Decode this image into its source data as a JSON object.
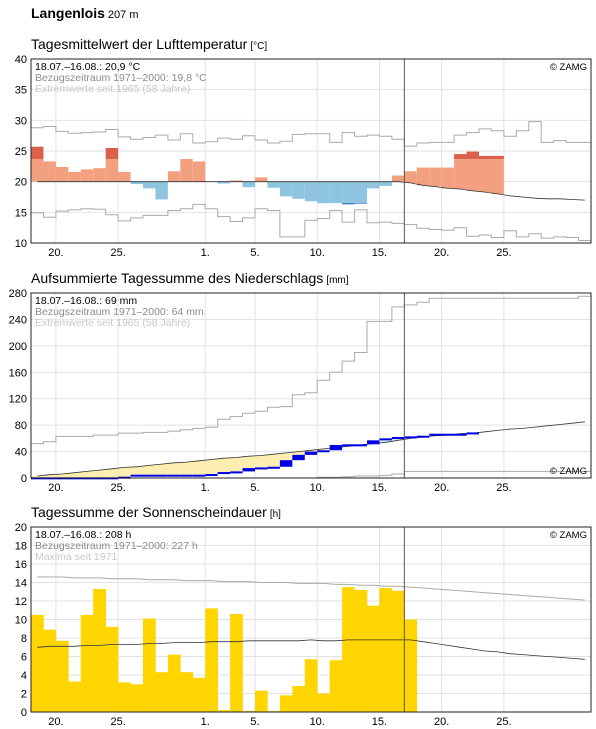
{
  "station": {
    "name": "Langenlois",
    "elevation": "207 m"
  },
  "copyright": "© ZAMG",
  "x_ticks": [
    {
      "day": 2,
      "label": "20."
    },
    {
      "day": 7,
      "label": "25."
    },
    {
      "day": 14,
      "label": "1."
    },
    {
      "day": 18,
      "label": "5."
    },
    {
      "day": 23,
      "label": "10."
    },
    {
      "day": 28,
      "label": "15."
    },
    {
      "day": 33,
      "label": "20."
    },
    {
      "day": 38,
      "label": "25."
    }
  ],
  "chart_data": [
    {
      "id": "temperature",
      "type": "bar",
      "title": "Tagesmittelwert der Lufttemperatur",
      "unit": "[°C]",
      "info": [
        "18.07.–16.08.: 20,9 °C",
        "Bezugszeitraum 1971–2000: 19,8 °C",
        "Extremwerte seit 1965 (58 Jahre)"
      ],
      "colors": {
        "warm_strong": "#d9604a",
        "warm": "#f2a080",
        "cool_strong": "#2a73b8",
        "cool": "#8ec4e0",
        "reference": "#333333",
        "extremes": "#aaaaaa"
      },
      "ylim": [
        10,
        40
      ],
      "y_ticks": [
        10,
        15,
        20,
        25,
        30,
        35,
        40
      ],
      "xlim": [
        0,
        45
      ],
      "current_day_marker": 30,
      "daily_values": [
        25.7,
        23.3,
        22.4,
        21.6,
        22.0,
        22.2,
        25.5,
        21.6,
        19.6,
        18.9,
        17.1,
        21.7,
        23.7,
        23.3,
        20.0,
        19.7,
        20.2,
        19.1,
        20.7,
        19.0,
        17.6,
        17.2,
        16.8,
        16.5,
        16.5,
        16.3,
        16.4,
        18.9,
        19.3,
        21.0,
        21.7,
        22.3,
        22.3,
        22.3,
        24.5,
        24.9,
        24.2,
        24.2
      ],
      "reference": [
        20.0,
        20.0,
        20.0,
        20.0,
        20.0,
        20.0,
        20.0,
        20.0,
        20.0,
        20.0,
        20.0,
        20.0,
        20.0,
        20.0,
        20.0,
        20.0,
        20.0,
        20.0,
        20.0,
        20.0,
        20.0,
        20.0,
        20.0,
        20.0,
        20.0,
        20.0,
        20.0,
        20.0,
        20.0,
        20.0,
        19.8,
        19.4,
        19.2,
        18.9,
        18.8,
        18.5,
        18.3,
        18.0,
        17.7,
        17.5,
        17.3,
        17.2,
        17.2,
        17.1,
        17.0
      ],
      "extreme_max": [
        28.8,
        29.0,
        28.2,
        27.9,
        28.0,
        28.1,
        28.5,
        27.3,
        26.9,
        27.2,
        27.6,
        26.8,
        27.8,
        26.3,
        26.5,
        27.1,
        26.9,
        27.5,
        26.8,
        26.3,
        26.6,
        27.7,
        27.8,
        27.8,
        26.4,
        28.0,
        27.4,
        27.6,
        27.4,
        26.9,
        25.8,
        26.3,
        26.4,
        26.4,
        27.6,
        28.0,
        28.6,
        28.3,
        27.4,
        28.3,
        29.8,
        26.4,
        26.7,
        26.4,
        26.4
      ],
      "extreme_min": [
        14.9,
        14.2,
        15.2,
        15.4,
        15.6,
        15.5,
        14.6,
        13.6,
        14.1,
        14.5,
        14.5,
        15.3,
        15.6,
        16.3,
        15.6,
        14.3,
        13.5,
        14.1,
        15.6,
        15.3,
        11.0,
        11.0,
        13.7,
        14.0,
        15.3,
        13.4,
        15.4,
        13.3,
        13.4,
        13.2,
        13.0,
        12.4,
        12.2,
        12.1,
        12.5,
        11.1,
        11.3,
        10.9,
        12.0,
        11.0,
        11.5,
        10.8,
        11.0,
        10.9,
        10.4
      ]
    },
    {
      "id": "precipitation",
      "type": "line",
      "title": "Aufsummierte Tagessumme des Niederschlags",
      "unit": "[mm]",
      "info": [
        "18.07.–16.08.: 69 mm",
        "Bezugszeitraum 1971–2000: 64 mm",
        "Extremwerte seit 1965 (58 Jahre)"
      ],
      "colors": {
        "observed": "#0000e6",
        "surplus_fill": "#d8ecec",
        "deficit_fill": "#fbeeb0",
        "reference": "#333333",
        "extremes": "#aaaaaa"
      },
      "ylim": [
        0,
        280
      ],
      "y_ticks": [
        0,
        40,
        80,
        120,
        160,
        200,
        240,
        280
      ],
      "xlim": [
        0,
        45
      ],
      "current_day_marker": 30,
      "cumulative_observed": [
        1,
        1,
        1,
        1,
        1,
        1,
        1,
        2,
        5,
        5,
        5,
        5,
        5,
        5,
        6,
        9,
        10,
        15,
        16,
        17,
        27,
        35,
        40,
        42,
        50,
        51,
        51,
        57,
        60,
        62,
        63,
        64,
        67,
        67,
        67,
        69
      ],
      "cumulative_reference": [
        3,
        5,
        6,
        8,
        10,
        12,
        14,
        16,
        17,
        19,
        21,
        23,
        24,
        26,
        28,
        30,
        31,
        33,
        34,
        36,
        38,
        40,
        42,
        44,
        46,
        48,
        50,
        52,
        54,
        57,
        60,
        62,
        64,
        65,
        67,
        68,
        70,
        72,
        74,
        75,
        77,
        79,
        81,
        83,
        85
      ],
      "extreme_max": [
        52,
        55,
        63,
        63,
        63,
        65,
        65,
        68,
        68,
        69,
        69,
        71,
        73,
        75,
        77,
        89,
        93,
        98,
        101,
        107,
        108,
        126,
        129,
        148,
        160,
        177,
        190,
        237,
        237,
        259,
        262,
        266,
        272,
        272,
        272,
        272,
        272,
        272,
        272,
        272,
        272,
        272,
        272,
        272,
        275
      ],
      "extreme_min": [
        0,
        0,
        0,
        0,
        0,
        0,
        0,
        0,
        0,
        0,
        0,
        0,
        0,
        0,
        0,
        0,
        0,
        0,
        0,
        0,
        0,
        0,
        0,
        1,
        1,
        2,
        3,
        3,
        4,
        6,
        10,
        10,
        10,
        10,
        10,
        10,
        10,
        10,
        10,
        10,
        10,
        10,
        10,
        10,
        10
      ]
    },
    {
      "id": "sunshine",
      "type": "bar",
      "title": "Tagessumme der Sonnenscheindauer",
      "unit": "[h]",
      "info": [
        "18.07.–16.08.: 208 h",
        "Bezugszeitraum 1971–2000: 227 h",
        "Maxima seit 1971"
      ],
      "colors": {
        "bars": "#ffd500",
        "reference": "#333333",
        "maxima": "#aaaaaa"
      },
      "ylim": [
        0,
        20
      ],
      "y_ticks": [
        0,
        2,
        4,
        6,
        8,
        10,
        12,
        14,
        16,
        18,
        20
      ],
      "xlim": [
        0,
        45
      ],
      "current_day_marker": 30,
      "daily_values": [
        10.5,
        8.9,
        7.7,
        3.3,
        10.5,
        13.3,
        9.2,
        3.2,
        3.0,
        10.1,
        4.3,
        6.2,
        4.3,
        3.7,
        11.2,
        0.2,
        10.6,
        0.1,
        2.3,
        0.1,
        1.8,
        2.8,
        5.7,
        2.0,
        5.6,
        13.5,
        13.2,
        11.5,
        13.4,
        13.1,
        10.0
      ],
      "reference": [
        7.0,
        7.1,
        7.1,
        7.1,
        7.2,
        7.2,
        7.3,
        7.3,
        7.3,
        7.4,
        7.4,
        7.5,
        7.5,
        7.5,
        7.6,
        7.6,
        7.6,
        7.7,
        7.7,
        7.7,
        7.7,
        7.7,
        7.8,
        7.7,
        7.7,
        7.8,
        7.8,
        7.8,
        7.8,
        7.8,
        7.8,
        7.6,
        7.4,
        7.2,
        7.0,
        6.8,
        6.6,
        6.5,
        6.3,
        6.2,
        6.1,
        6.0,
        5.9,
        5.8,
        5.7
      ],
      "maxima": [
        14.6,
        14.6,
        14.6,
        14.5,
        14.5,
        14.5,
        14.4,
        14.4,
        14.4,
        14.3,
        14.3,
        14.3,
        14.2,
        14.2,
        14.2,
        14.1,
        14.1,
        14.1,
        14.0,
        14.0,
        14.0,
        13.9,
        13.9,
        13.9,
        13.8,
        13.8,
        13.7,
        13.7,
        13.6,
        13.6,
        13.5,
        13.4,
        13.3,
        13.2,
        13.1,
        13.0,
        12.9,
        12.8,
        12.7,
        12.6,
        12.5,
        12.4,
        12.3,
        12.2,
        12.1
      ]
    }
  ]
}
